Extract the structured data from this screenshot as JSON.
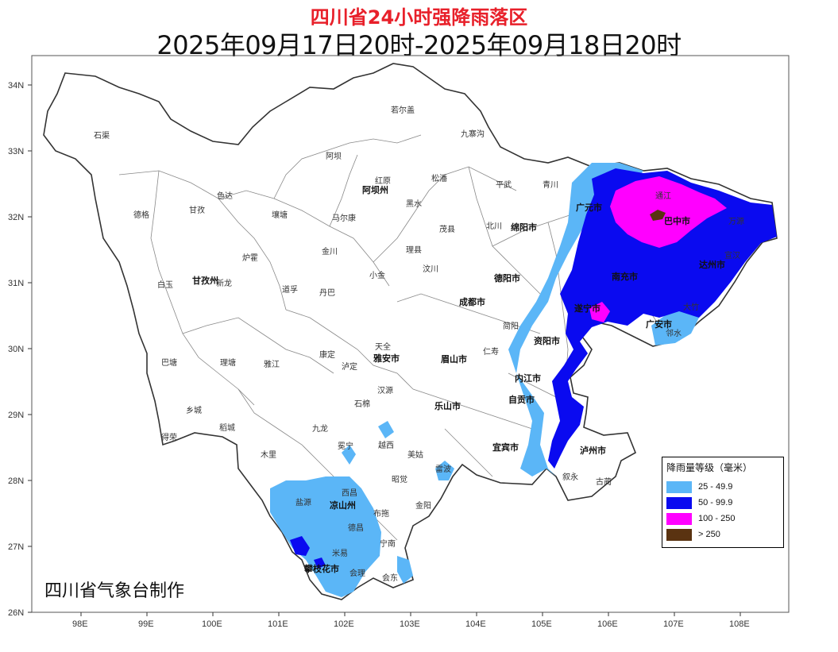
{
  "title": "四川省24小时强降雨落区",
  "subtitle": "2025年09月17日20时-2025年09月18日20时",
  "maker": "四川省气象台制作",
  "legend": {
    "title": "降雨量等级（毫米）",
    "items": [
      {
        "label": "25 - 49.9",
        "color": "#5bb6f7"
      },
      {
        "label": "50 - 99.9",
        "color": "#0a0af0"
      },
      {
        "label": "100 - 250",
        "color": "#ff00ff"
      },
      {
        "label": "> 250",
        "color": "#5a3311"
      }
    ]
  },
  "axes": {
    "lat_labels": [
      "34N",
      "33N",
      "32N",
      "31N",
      "30N",
      "29N",
      "28N",
      "27N",
      "26N"
    ],
    "lon_labels": [
      "98E",
      "99E",
      "100E",
      "101E",
      "102E",
      "103E",
      "104E",
      "105E",
      "106E",
      "107E",
      "108E"
    ]
  },
  "places": {
    "shiqu": "石渠",
    "ruoergai": "若尔盖",
    "jiuzhaigou": "九寨沟",
    "aba": "阿坝",
    "hongyuan": "红原",
    "songpan": "松潘",
    "pingwu": "平武",
    "qingchuan": "青川",
    "aba_zhou": "阿坝州",
    "dege": "德格",
    "ganzi": "甘孜",
    "seda": "色达",
    "rangtang": "壤塘",
    "maerkang": "马尔康",
    "heishui": "黑水",
    "maoxian": "茂县",
    "beichuan": "北川",
    "mianyang": "绵阳市",
    "jinchuan": "金川",
    "lixian": "理县",
    "luhuo": "炉霍",
    "baiyu": "白玉",
    "ganzi_zhou": "甘孜州",
    "xinlong": "新龙",
    "daofu": "道孚",
    "danba": "丹巴",
    "xiaojin": "小金",
    "wenchuan": "汶川",
    "chengdu": "成都市",
    "deyang": "德阳市",
    "batang": "巴塘",
    "litang": "理塘",
    "yajiang": "雅江",
    "kangding": "康定",
    "luding": "泸定",
    "tianquan": "天全",
    "yaan": "雅安市",
    "xiangcheng": "乡城",
    "daocheng": "稻城",
    "derong": "得荣",
    "jiulong": "九龙",
    "shimian": "石棉",
    "hanyuan": "汉源",
    "leshan": "乐山市",
    "muli": "木里",
    "mianning": "冕宁",
    "yuexi": "越西",
    "meigu": "美姑",
    "leibo": "雷波",
    "yanyuan": "盐源",
    "xichang": "西昌",
    "liangshan": "凉山州",
    "zhaojue": "昭觉",
    "butuo": "布拖",
    "jinyang": "金阳",
    "dechang": "德昌",
    "huili": "会理",
    "huidong": "会东",
    "ningnan": "宁南",
    "panzhihua": "攀枝花市",
    "miyi": "米易",
    "guangyuan": "广元市",
    "bazhong": "巴中市",
    "tongjiang": "通江",
    "wanyuan": "万源",
    "dazhou": "达州市",
    "xuanhan": "宣汉",
    "nanchong": "南充市",
    "guangan": "广安市",
    "suining": "遂宁市",
    "ziyang": "资阳市",
    "neijiang": "内江市",
    "zigong": "自贡市",
    "yibin": "宜宾市",
    "luzhou": "泸州市",
    "gulin": "古蔺",
    "xuyong": "叙永",
    "dazhu": "大竹",
    "linshui": "邻水",
    "meishan": "眉山市",
    "renshou": "仁寿",
    "jianyang": "简阳",
    "jianyang2": "简阳"
  }
}
